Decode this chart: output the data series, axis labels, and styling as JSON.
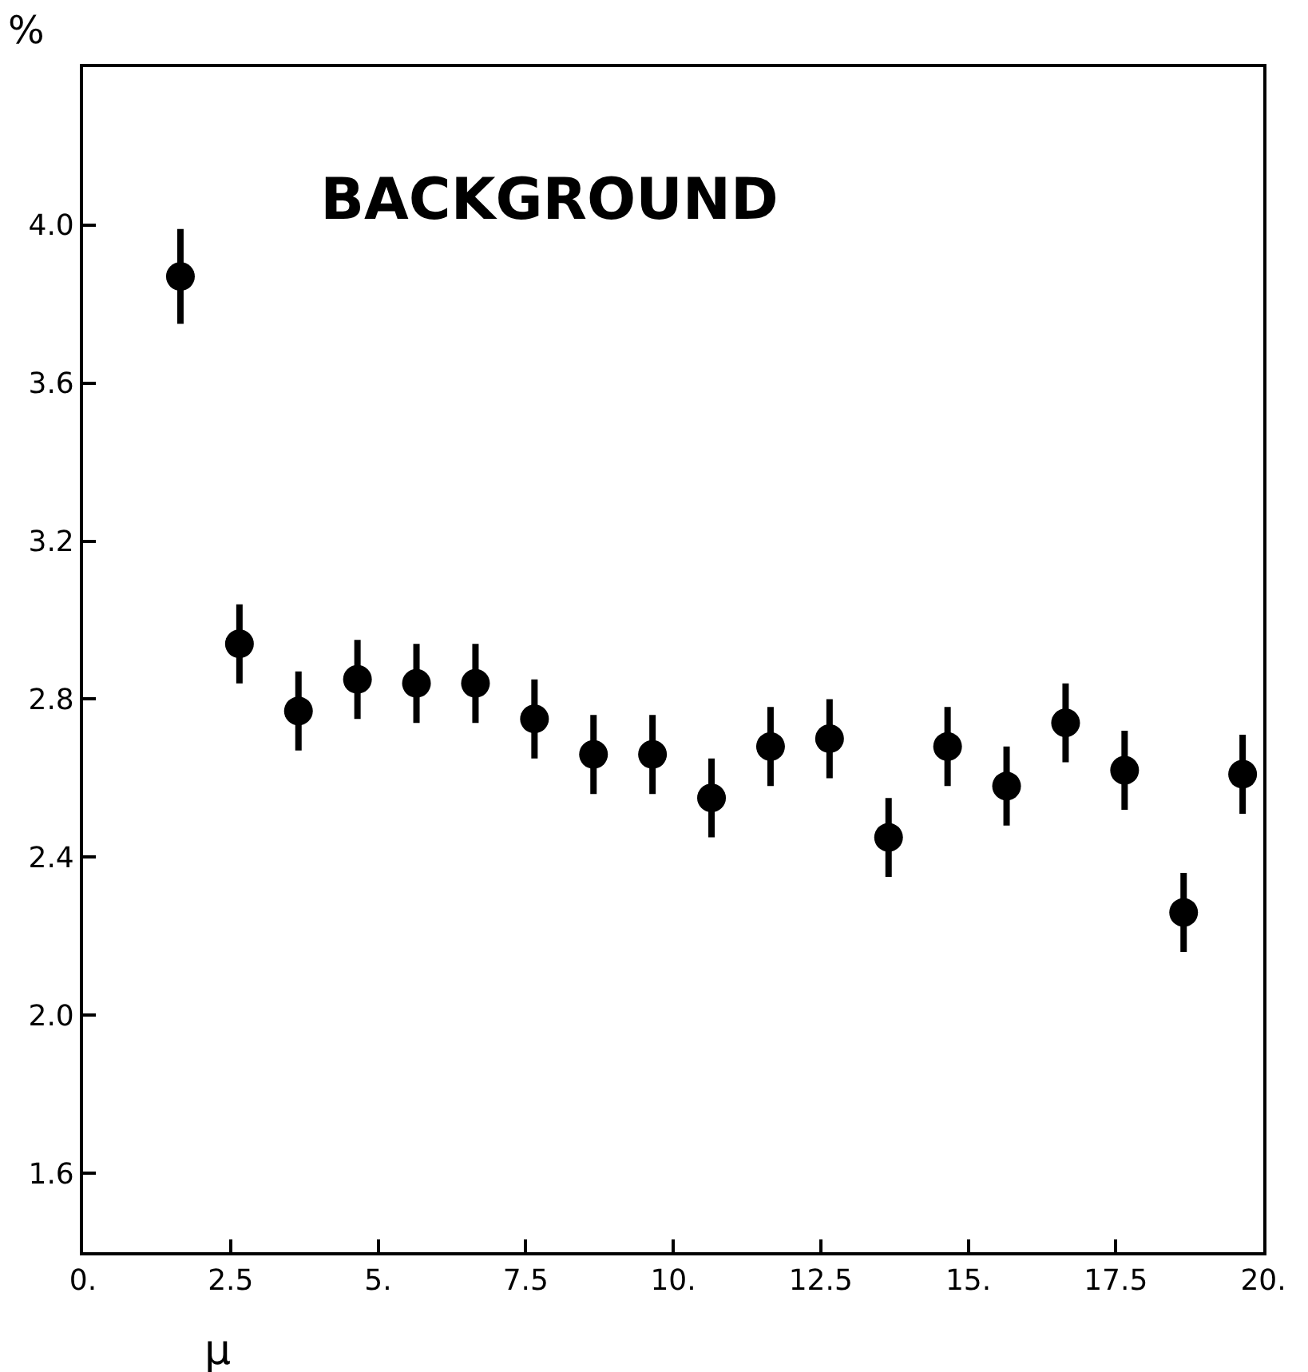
{
  "chart_data": {
    "type": "scatter",
    "title": "BACKGROUND",
    "xlabel": "μ",
    "ylabel": "%",
    "x": [
      1.65,
      2.65,
      3.65,
      4.65,
      5.65,
      6.65,
      7.65,
      8.65,
      9.65,
      10.65,
      11.65,
      12.65,
      13.65,
      14.65,
      15.65,
      16.65,
      17.65,
      18.65,
      19.65
    ],
    "series": [
      {
        "color": "#000000",
        "values": [
          3.87,
          2.94,
          2.77,
          2.85,
          2.84,
          2.84,
          2.75,
          2.66,
          2.66,
          2.55,
          2.68,
          2.7,
          2.45,
          2.68,
          2.58,
          2.74,
          2.62,
          2.26,
          2.61
        ],
        "errors": [
          0.12,
          0.1,
          0.1,
          0.1,
          0.1,
          0.1,
          0.1,
          0.1,
          0.1,
          0.1,
          0.1,
          0.1,
          0.1,
          0.1,
          0.1,
          0.1,
          0.1,
          0.1,
          0.1
        ]
      }
    ],
    "xlim": [
      0,
      20
    ],
    "ylim": [
      1.4,
      4.4
    ],
    "xticks": [
      {
        "value": 0,
        "label": "0."
      },
      2.5,
      {
        "value": 5,
        "label": "5."
      },
      7.5,
      {
        "value": 10,
        "label": "10."
      },
      12.5,
      {
        "value": 15,
        "label": "15."
      },
      17.5,
      {
        "value": 20,
        "label": "20."
      }
    ],
    "yticks": [
      1.6,
      {
        "value": 2,
        "label": "2.0"
      },
      2.4,
      2.8,
      3.2,
      3.6,
      {
        "value": 4,
        "label": "4.0"
      }
    ],
    "grid": false,
    "marker": "circle"
  }
}
